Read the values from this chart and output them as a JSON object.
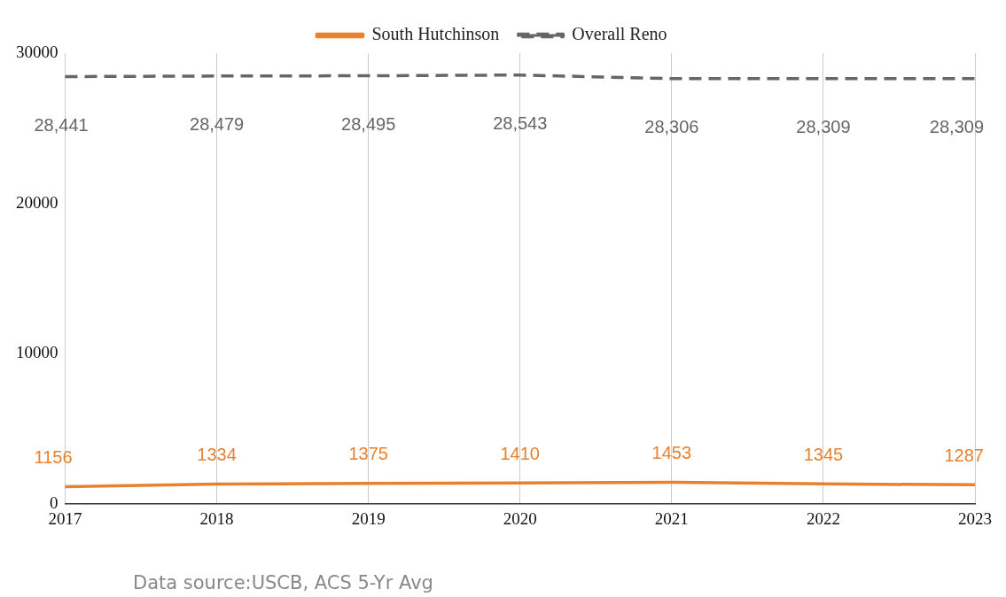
{
  "chart_data": {
    "type": "line",
    "categories": [
      "2017",
      "2018",
      "2019",
      "2020",
      "2021",
      "2022",
      "2023"
    ],
    "series": [
      {
        "name": "South Hutchinson",
        "color": "#e8812f",
        "values": [
          1156,
          1334,
          1375,
          1410,
          1453,
          1345,
          1287
        ],
        "value_labels": [
          "1156",
          "1334",
          "1375",
          "1410",
          "1453",
          "1345",
          "1287"
        ]
      },
      {
        "name": "Overall Reno",
        "color": "#666666",
        "line_style": "dashed",
        "values": [
          28441,
          28479,
          28495,
          28543,
          28306,
          28309,
          28309
        ],
        "value_labels": [
          "28,441",
          "28,479",
          "28,495",
          "28,543",
          "28,306",
          "28,309",
          "28,309"
        ]
      }
    ],
    "ylim": [
      0,
      30000
    ],
    "yticks": [
      0,
      10000,
      20000,
      30000
    ],
    "grid": "x",
    "legend": "top",
    "marker": "none",
    "annotations": [
      "Data source:USCB, ACS 5-Yr Avg"
    ]
  }
}
